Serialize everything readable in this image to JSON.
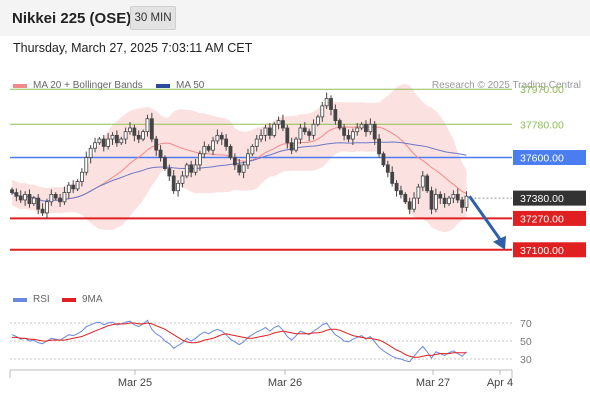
{
  "header": {
    "title": "Nikkei 225 (OSE)",
    "timeframe": "30 MIN",
    "timestamp": "Thursday, March 27, 2025 7:03:11 AM CET"
  },
  "legend": {
    "ma20_label": "MA 20 + Bollinger Bands",
    "ma50_label": "MA 50",
    "credit": "Research © 2025 Trading Central"
  },
  "indicator_legend": {
    "rsi_label": "RSI",
    "ma9_label": "9MA"
  },
  "colors": {
    "candle": "#444444",
    "ma20": "#f08a8a",
    "bollinger_fill": "#fcdcdc",
    "ma50": "#6a78c8",
    "resistance": "#8dc050",
    "support": "#e02020",
    "pivot": "#4a7ef0",
    "current": "#333333",
    "forecast_arrow": "#2e5fa8",
    "rsi": "#6a88dd",
    "rsi_ma": "#e02020"
  },
  "chart_data": [
    {
      "type": "candlestick",
      "title": "Nikkei 225 (OSE)",
      "timeframe": "30 MIN",
      "ylim": [
        36920,
        38020
      ],
      "x_ticks": [
        "Mar 25",
        "Mar 26",
        "Mar 27",
        "Apr 4"
      ],
      "grid": false,
      "legend_position": "top-left",
      "series": [
        {
          "name": "MA 20 + Bollinger Bands",
          "kind": "line+band"
        },
        {
          "name": "MA 50",
          "kind": "line"
        }
      ],
      "levels": [
        {
          "label": "37970.00",
          "value": 37970,
          "type": "resistance"
        },
        {
          "label": "37780.00",
          "value": 37780,
          "type": "resistance"
        },
        {
          "label": "37600.00",
          "value": 37600,
          "type": "pivot"
        },
        {
          "label": "37380.00",
          "value": 37380,
          "type": "current"
        },
        {
          "label": "37270.00",
          "value": 37270,
          "type": "support"
        },
        {
          "label": "37100.00",
          "value": 37100,
          "type": "support"
        }
      ],
      "forecast": {
        "direction": "down",
        "from": 37390,
        "to": 37100
      },
      "closes": [
        37410,
        37390,
        37370,
        37400,
        37350,
        37380,
        37320,
        37300,
        37360,
        37400,
        37380,
        37360,
        37410,
        37450,
        37430,
        37470,
        37520,
        37600,
        37650,
        37680,
        37700,
        37660,
        37700,
        37720,
        37680,
        37700,
        37740,
        37760,
        37720,
        37700,
        37740,
        37810,
        37700,
        37640,
        37600,
        37540,
        37500,
        37420,
        37460,
        37500,
        37560,
        37520,
        37560,
        37620,
        37660,
        37640,
        37690,
        37720,
        37700,
        37660,
        37600,
        37560,
        37520,
        37560,
        37620,
        37660,
        37700,
        37720,
        37760,
        37720,
        37780,
        37800,
        37760,
        37680,
        37640,
        37700,
        37760,
        37740,
        37720,
        37780,
        37820,
        37880,
        37920,
        37860,
        37800,
        37760,
        37720,
        37700,
        37740,
        37760,
        37780,
        37740,
        37780,
        37700,
        37620,
        37560,
        37520,
        37460,
        37420,
        37400,
        37360,
        37320,
        37380,
        37440,
        37500,
        37420,
        37320,
        37400,
        37380,
        37350,
        37380,
        37400,
        37370,
        37330,
        37390
      ],
      "rsi_ylim": [
        20,
        80
      ],
      "rsi_ticks": [
        70,
        50,
        30
      ],
      "rsi": [
        57,
        55,
        52,
        53,
        50,
        51,
        48,
        47,
        50,
        53,
        52,
        51,
        54,
        57,
        56,
        58,
        61,
        66,
        68,
        70,
        71,
        68,
        70,
        71,
        68,
        69,
        71,
        72,
        68,
        66,
        69,
        73,
        63,
        58,
        55,
        50,
        47,
        42,
        45,
        48,
        53,
        50,
        53,
        57,
        60,
        58,
        61,
        63,
        61,
        57,
        52,
        49,
        46,
        49,
        54,
        57,
        60,
        62,
        65,
        61,
        65,
        67,
        62,
        55,
        51,
        56,
        61,
        59,
        57,
        61,
        64,
        68,
        70,
        63,
        57,
        54,
        50,
        49,
        52,
        54,
        56,
        52,
        55,
        49,
        43,
        39,
        36,
        33,
        31,
        30,
        28,
        27,
        33,
        39,
        44,
        38,
        31,
        38,
        36,
        34,
        37,
        39,
        36,
        33,
        38
      ],
      "rsi_ma": [
        54,
        54,
        53,
        53,
        52,
        52,
        51,
        50,
        50,
        51,
        51,
        51,
        51,
        52,
        53,
        54,
        55,
        57,
        59,
        61,
        63,
        65,
        67,
        68,
        69,
        69,
        69,
        70,
        70,
        69,
        69,
        70,
        69,
        67,
        65,
        63,
        60,
        57,
        54,
        51,
        49,
        48,
        48,
        49,
        51,
        52,
        53,
        55,
        57,
        58,
        57,
        56,
        55,
        54,
        53,
        53,
        54,
        55,
        56,
        57,
        59,
        60,
        61,
        60,
        59,
        58,
        58,
        58,
        58,
        59,
        59,
        60,
        62,
        63,
        63,
        62,
        60,
        58,
        56,
        55,
        54,
        53,
        53,
        52,
        51,
        49,
        46,
        43,
        40,
        38,
        35,
        33,
        32,
        32,
        33,
        34,
        34,
        35,
        36,
        36,
        36,
        37,
        37,
        37,
        37
      ]
    }
  ]
}
